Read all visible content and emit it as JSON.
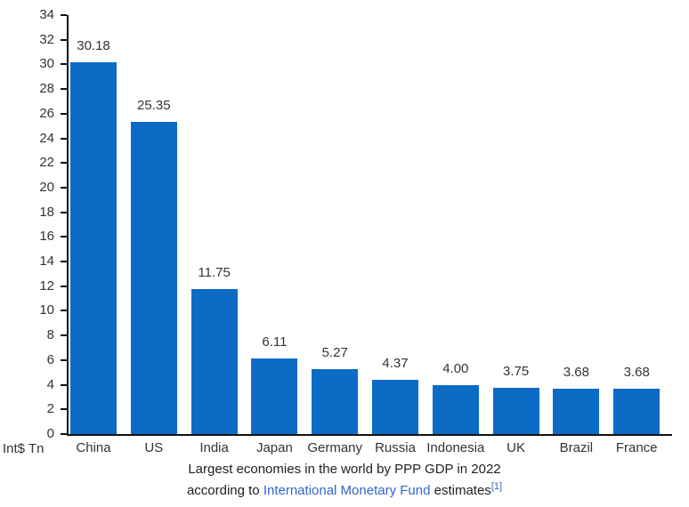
{
  "chart_data": {
    "type": "bar",
    "title": "",
    "categories": [
      "China",
      "US",
      "India",
      "Japan",
      "Germany",
      "Russia",
      "Indonesia",
      "UK",
      "Brazil",
      "France"
    ],
    "values": [
      30.18,
      25.35,
      11.75,
      6.11,
      5.27,
      4.37,
      4.0,
      3.75,
      3.68,
      3.68
    ],
    "value_labels": [
      "30.18",
      "25.35",
      "11.75",
      "6.11",
      "5.27",
      "4.37",
      "4.00",
      "3.75",
      "3.68",
      "3.68"
    ],
    "xlabel": "",
    "ylabel": "Int$ Tn",
    "ylim": [
      0,
      34
    ],
    "ytick_step": 2,
    "grid": false,
    "legend": false,
    "bar_color": "#0c6cc5",
    "axis_color": "#111111",
    "label_color": "#333333"
  },
  "caption": {
    "line1": "Largest economies in the world by PPP GDP in 2022",
    "line2_prefix": "according to ",
    "link_text": "International Monetary Fund",
    "line2_suffix": " estimates",
    "reference_marker": "[1]",
    "link_color": "#3366cc",
    "text_color": "#202122"
  }
}
